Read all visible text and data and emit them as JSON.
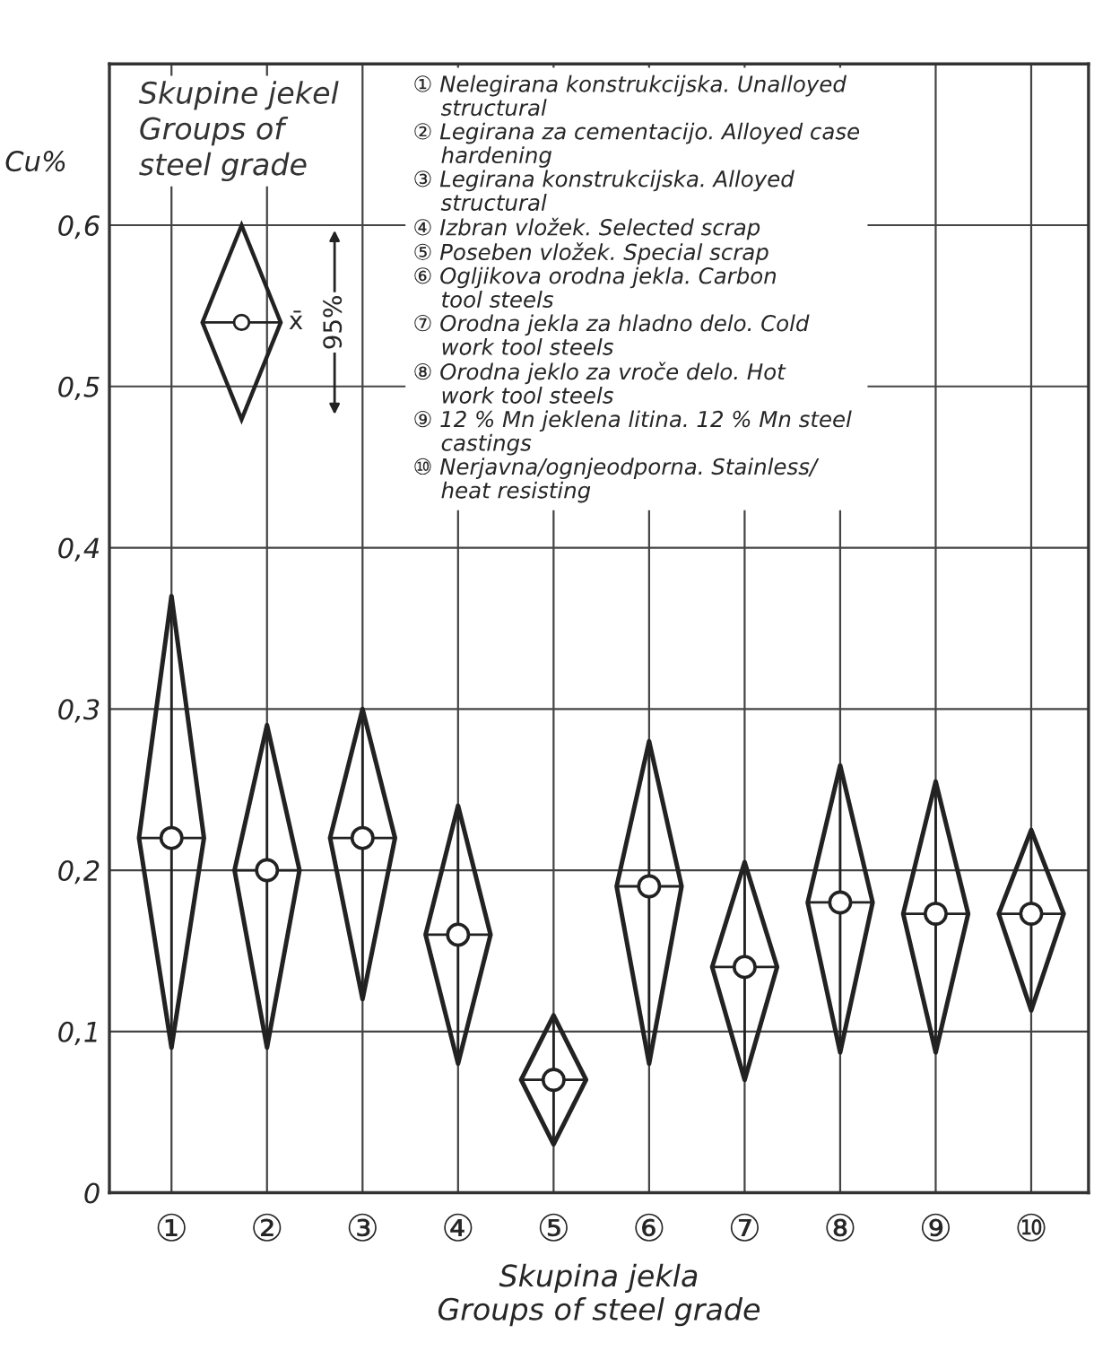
{
  "chart_data": {
    "type": "scatter",
    "legend_title": "Skupine jekel\nGroups of\nsteel grade",
    "ylabel": "Cu%",
    "xlabel": "Skupina jekla\nGroups of steel grade",
    "categories": [
      "①",
      "②",
      "③",
      "④",
      "⑤",
      "⑥",
      "⑦",
      "⑧",
      "⑨",
      "⑩"
    ],
    "series": [
      {
        "color": "#222222",
        "marker": "circle",
        "values": [
          0.22,
          0.2,
          0.22,
          0.16,
          0.07,
          0.19,
          0.14,
          0.18,
          0.173,
          0.173
        ],
        "errors": [
          [
            0.09,
            0.37
          ],
          [
            0.09,
            0.29
          ],
          [
            0.12,
            0.3
          ],
          [
            0.08,
            0.24
          ],
          [
            0.03,
            0.11
          ],
          [
            0.08,
            0.28
          ],
          [
            0.07,
            0.205
          ],
          [
            0.087,
            0.265
          ],
          [
            0.087,
            0.255
          ],
          [
            0.113,
            0.225
          ]
        ]
      }
    ],
    "ylim": [
      0,
      0.7
    ],
    "yticks": [
      0,
      {
        "value": 0.1,
        "label": "0,1"
      },
      {
        "value": 0.2,
        "label": "0,2"
      },
      {
        "value": 0.3,
        "label": "0,3"
      },
      {
        "value": 0.4,
        "label": "0,4"
      },
      {
        "value": 0.5,
        "label": "0,5"
      },
      {
        "value": 0.6,
        "label": "0,6"
      }
    ],
    "grid": true,
    "annotations": [
      "x̄",
      "95%",
      "① Nelegirana konstrukcijska. Unalloyed\n    structural",
      "② Legirana za cementacijo. Alloyed case\n    hardening",
      "③ Legirana konstrukcijska. Alloyed\n    structural",
      "④ Izbran vložek. Selected scrap",
      "⑤ Poseben vložek. Special scrap",
      "⑥ Ogljikova orodna jekla. Carbon\n    tool steels",
      "⑦ Orodna jekla za hladno delo. Cold\n    work tool steels",
      "⑧ Orodna jeklo za vroče delo. Hot\n    work tool steels",
      "⑨ 12 % Mn jeklena litina. 12 % Mn steel\n    castings",
      "⑩ Nerjavna/ognjeodporna. Stainless/\n    heat resisting"
    ]
  }
}
